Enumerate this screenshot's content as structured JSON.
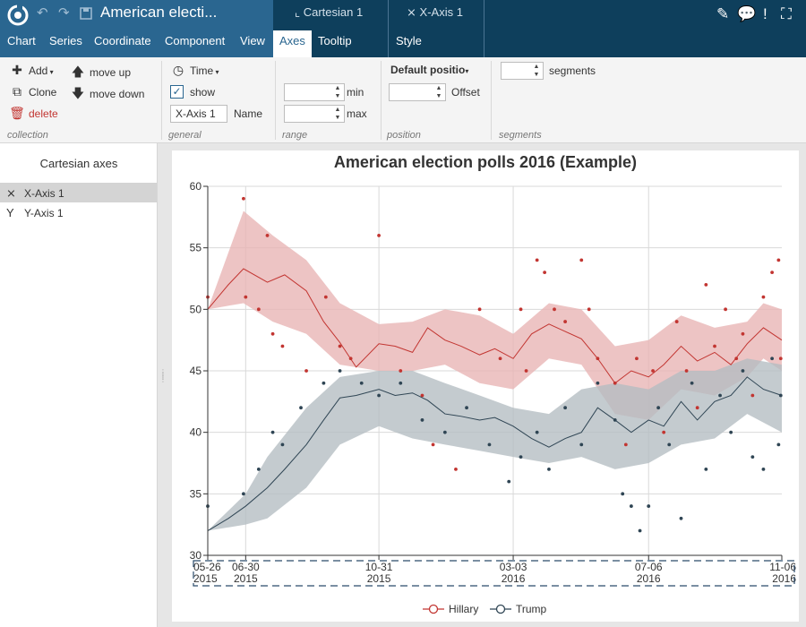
{
  "app": {
    "title": "American electi...",
    "menus": [
      "Chart",
      "Series",
      "Coordinate",
      "Component",
      "View",
      "Axes",
      "Tooltip",
      "Style"
    ],
    "active_menu": "Axes",
    "context_tabs": [
      "Cartesian 1",
      "X-Axis 1"
    ]
  },
  "ribbon": {
    "collection": {
      "add": "Add",
      "clone": "Clone",
      "delete": "delete",
      "move_up": "move up",
      "move_down": "move down",
      "label": "collection"
    },
    "general": {
      "type": "Time",
      "show": "show",
      "name_value": "X-Axis 1",
      "name_label": "Name",
      "label": "general"
    },
    "range": {
      "min_label": "min",
      "max_label": "max",
      "min_value": "",
      "max_value": "",
      "label": "range"
    },
    "position": {
      "dropdown": "Default positio",
      "offset_label": "Offset",
      "offset_value": "",
      "label": "position"
    },
    "segments": {
      "label_text": "segments",
      "value": "",
      "label": "segments"
    }
  },
  "left_panel": {
    "header": "Cartesian axes",
    "items": [
      {
        "label": "X-Axis 1",
        "selected": true
      },
      {
        "label": "Y-Axis 1",
        "selected": false
      }
    ]
  },
  "colors": {
    "hillary": "#c23531",
    "hillary_band": "#e8b3b3",
    "trump": "#2f4554",
    "trump_band": "#b3bdc2",
    "brand": "#0e3f5c"
  },
  "chart_data": {
    "type": "line",
    "title": "American election polls 2016 (Example)",
    "ylim": [
      30,
      60
    ],
    "y_ticks": [
      "30",
      "35",
      "40",
      "45",
      "50",
      "55",
      "60"
    ],
    "x_range": [
      "2015-05-26",
      "2016-11-06"
    ],
    "x_ticks": [
      {
        "date": "2015-05-26",
        "label": [
          "05-26",
          "2015"
        ]
      },
      {
        "date": "2015-06-30",
        "label": [
          "06-30",
          "2015"
        ]
      },
      {
        "date": "2015-10-31",
        "label": [
          "10-31",
          "2015"
        ]
      },
      {
        "date": "2016-03-03",
        "label": [
          "03-03",
          "2016"
        ]
      },
      {
        "date": "2016-07-06",
        "label": [
          "07-06",
          "2016"
        ]
      },
      {
        "date": "2016-11-06",
        "label": [
          "11-06",
          "2016"
        ]
      }
    ],
    "legend": [
      "Hillary",
      "Trump"
    ],
    "series": [
      {
        "name": "Hillary",
        "color": "#c23531",
        "band_color": "#e8b3b3",
        "trend": [
          [
            "2015-05-26",
            50.0
          ],
          [
            "2015-06-14",
            52.0
          ],
          [
            "2015-06-28",
            53.3
          ],
          [
            "2015-07-20",
            52.2
          ],
          [
            "2015-08-05",
            52.8
          ],
          [
            "2015-08-25",
            51.5
          ],
          [
            "2015-09-10",
            49.0
          ],
          [
            "2015-09-25",
            47.3
          ],
          [
            "2015-10-10",
            45.3
          ],
          [
            "2015-10-31",
            47.2
          ],
          [
            "2015-11-15",
            47.0
          ],
          [
            "2015-12-01",
            46.5
          ],
          [
            "2015-12-15",
            48.5
          ],
          [
            "2015-12-31",
            47.5
          ],
          [
            "2016-01-15",
            47.0
          ],
          [
            "2016-02-01",
            46.3
          ],
          [
            "2016-02-15",
            46.8
          ],
          [
            "2016-03-03",
            46.0
          ],
          [
            "2016-03-20",
            48.0
          ],
          [
            "2016-04-05",
            48.8
          ],
          [
            "2016-04-20",
            48.2
          ],
          [
            "2016-05-05",
            47.6
          ],
          [
            "2016-05-20",
            46.0
          ],
          [
            "2016-06-05",
            44.0
          ],
          [
            "2016-06-20",
            45.0
          ],
          [
            "2016-07-06",
            44.5
          ],
          [
            "2016-07-20",
            45.5
          ],
          [
            "2016-08-05",
            47.0
          ],
          [
            "2016-08-20",
            45.8
          ],
          [
            "2016-09-05",
            46.5
          ],
          [
            "2016-09-20",
            45.5
          ],
          [
            "2016-10-05",
            47.2
          ],
          [
            "2016-10-20",
            48.5
          ],
          [
            "2016-11-06",
            47.5
          ]
        ],
        "band_upper": [
          [
            "2015-05-26",
            50.0
          ],
          [
            "2015-06-28",
            58.0
          ],
          [
            "2015-07-25",
            56.0
          ],
          [
            "2015-08-25",
            54.0
          ],
          [
            "2015-09-25",
            50.5
          ],
          [
            "2015-10-31",
            48.8
          ],
          [
            "2015-12-01",
            49.0
          ],
          [
            "2015-12-31",
            50.0
          ],
          [
            "2016-02-01",
            49.5
          ],
          [
            "2016-03-03",
            48.0
          ],
          [
            "2016-04-05",
            50.5
          ],
          [
            "2016-05-05",
            50.0
          ],
          [
            "2016-06-05",
            47.0
          ],
          [
            "2016-07-06",
            47.5
          ],
          [
            "2016-08-05",
            49.5
          ],
          [
            "2016-09-05",
            48.5
          ],
          [
            "2016-10-05",
            49.0
          ],
          [
            "2016-10-20",
            50.5
          ],
          [
            "2016-11-06",
            50.0
          ]
        ],
        "band_lower": [
          [
            "2015-05-26",
            50.0
          ],
          [
            "2015-06-28",
            50.5
          ],
          [
            "2015-07-25",
            49.0
          ],
          [
            "2015-08-25",
            48.0
          ],
          [
            "2015-09-25",
            45.5
          ],
          [
            "2015-10-31",
            45.0
          ],
          [
            "2015-12-01",
            45.0
          ],
          [
            "2015-12-31",
            45.5
          ],
          [
            "2016-02-01",
            44.0
          ],
          [
            "2016-03-03",
            43.5
          ],
          [
            "2016-04-05",
            46.0
          ],
          [
            "2016-05-05",
            45.5
          ],
          [
            "2016-06-05",
            41.5
          ],
          [
            "2016-07-06",
            41.0
          ],
          [
            "2016-08-05",
            43.5
          ],
          [
            "2016-09-05",
            43.0
          ],
          [
            "2016-10-05",
            44.5
          ],
          [
            "2016-10-20",
            46.0
          ],
          [
            "2016-11-06",
            45.0
          ]
        ],
        "points": [
          [
            "2015-05-26",
            51
          ],
          [
            "2015-06-28",
            59
          ],
          [
            "2015-06-30",
            51
          ],
          [
            "2015-07-12",
            50
          ],
          [
            "2015-07-20",
            56
          ],
          [
            "2015-07-25",
            48
          ],
          [
            "2015-08-03",
            47
          ],
          [
            "2015-08-25",
            45
          ],
          [
            "2015-09-12",
            51
          ],
          [
            "2015-09-25",
            47
          ],
          [
            "2015-10-05",
            46
          ],
          [
            "2015-10-31",
            56
          ],
          [
            "2015-11-20",
            45
          ],
          [
            "2015-12-10",
            43
          ],
          [
            "2015-12-20",
            39
          ],
          [
            "2016-01-10",
            37
          ],
          [
            "2016-02-01",
            50
          ],
          [
            "2016-02-20",
            46
          ],
          [
            "2016-03-10",
            50
          ],
          [
            "2016-03-15",
            45
          ],
          [
            "2016-03-25",
            54
          ],
          [
            "2016-04-01",
            53
          ],
          [
            "2016-04-10",
            50
          ],
          [
            "2016-04-20",
            49
          ],
          [
            "2016-05-05",
            54
          ],
          [
            "2016-05-12",
            50
          ],
          [
            "2016-05-20",
            46
          ],
          [
            "2016-06-05",
            44
          ],
          [
            "2016-06-15",
            39
          ],
          [
            "2016-06-25",
            46
          ],
          [
            "2016-07-10",
            45
          ],
          [
            "2016-07-20",
            40
          ],
          [
            "2016-08-01",
            49
          ],
          [
            "2016-08-10",
            45
          ],
          [
            "2016-08-20",
            42
          ],
          [
            "2016-08-28",
            52
          ],
          [
            "2016-09-05",
            47
          ],
          [
            "2016-09-15",
            50
          ],
          [
            "2016-09-25",
            46
          ],
          [
            "2016-10-01",
            48
          ],
          [
            "2016-10-10",
            43
          ],
          [
            "2016-10-20",
            51
          ],
          [
            "2016-10-28",
            53
          ],
          [
            "2016-11-03",
            54
          ],
          [
            "2016-11-05",
            46
          ]
        ]
      },
      {
        "name": "Trump",
        "color": "#2f4554",
        "band_color": "#b3bdc2",
        "trend": [
          [
            "2015-05-26",
            32.0
          ],
          [
            "2015-06-14",
            33.0
          ],
          [
            "2015-06-30",
            34.0
          ],
          [
            "2015-07-20",
            35.5
          ],
          [
            "2015-08-05",
            37.0
          ],
          [
            "2015-08-25",
            39.0
          ],
          [
            "2015-09-10",
            41.0
          ],
          [
            "2015-09-25",
            42.8
          ],
          [
            "2015-10-10",
            43.0
          ],
          [
            "2015-10-31",
            43.5
          ],
          [
            "2015-11-15",
            43.0
          ],
          [
            "2015-12-01",
            43.2
          ],
          [
            "2015-12-15",
            42.6
          ],
          [
            "2015-12-31",
            41.5
          ],
          [
            "2016-01-15",
            41.3
          ],
          [
            "2016-02-01",
            41.0
          ],
          [
            "2016-02-15",
            41.2
          ],
          [
            "2016-03-03",
            40.5
          ],
          [
            "2016-03-20",
            39.5
          ],
          [
            "2016-04-05",
            38.8
          ],
          [
            "2016-04-20",
            39.5
          ],
          [
            "2016-05-05",
            40.0
          ],
          [
            "2016-05-20",
            42.0
          ],
          [
            "2016-06-05",
            41.0
          ],
          [
            "2016-06-20",
            40.0
          ],
          [
            "2016-07-06",
            41.0
          ],
          [
            "2016-07-20",
            40.5
          ],
          [
            "2016-08-05",
            42.5
          ],
          [
            "2016-08-20",
            41.0
          ],
          [
            "2016-09-05",
            42.5
          ],
          [
            "2016-09-20",
            43.0
          ],
          [
            "2016-10-05",
            44.5
          ],
          [
            "2016-10-20",
            43.5
          ],
          [
            "2016-11-06",
            43.0
          ]
        ],
        "band_upper": [
          [
            "2015-05-26",
            32.0
          ],
          [
            "2015-06-30",
            35.0
          ],
          [
            "2015-07-20",
            38.0
          ],
          [
            "2015-08-25",
            42.0
          ],
          [
            "2015-09-25",
            44.5
          ],
          [
            "2015-10-31",
            45.0
          ],
          [
            "2015-12-01",
            45.0
          ],
          [
            "2015-12-31",
            44.0
          ],
          [
            "2016-02-01",
            43.0
          ],
          [
            "2016-03-03",
            42.0
          ],
          [
            "2016-04-05",
            41.5
          ],
          [
            "2016-05-05",
            43.5
          ],
          [
            "2016-06-05",
            44.0
          ],
          [
            "2016-07-06",
            43.5
          ],
          [
            "2016-08-05",
            45.0
          ],
          [
            "2016-09-05",
            45.0
          ],
          [
            "2016-10-05",
            46.0
          ],
          [
            "2016-11-06",
            45.5
          ]
        ],
        "band_lower": [
          [
            "2015-05-26",
            32.0
          ],
          [
            "2015-06-30",
            32.5
          ],
          [
            "2015-07-20",
            33.0
          ],
          [
            "2015-08-25",
            35.5
          ],
          [
            "2015-09-25",
            39.0
          ],
          [
            "2015-10-31",
            40.5
          ],
          [
            "2015-12-01",
            39.5
          ],
          [
            "2015-12-31",
            39.0
          ],
          [
            "2016-02-01",
            38.5
          ],
          [
            "2016-03-03",
            38.0
          ],
          [
            "2016-04-05",
            37.5
          ],
          [
            "2016-05-05",
            38.0
          ],
          [
            "2016-06-05",
            37.0
          ],
          [
            "2016-07-06",
            37.5
          ],
          [
            "2016-08-05",
            39.0
          ],
          [
            "2016-09-05",
            39.5
          ],
          [
            "2016-10-05",
            41.5
          ],
          [
            "2016-11-06",
            40.0
          ]
        ],
        "points": [
          [
            "2015-05-26",
            34
          ],
          [
            "2015-06-28",
            35
          ],
          [
            "2015-07-12",
            37
          ],
          [
            "2015-07-25",
            40
          ],
          [
            "2015-08-03",
            39
          ],
          [
            "2015-08-20",
            42
          ],
          [
            "2015-09-10",
            44
          ],
          [
            "2015-09-25",
            45
          ],
          [
            "2015-10-15",
            44
          ],
          [
            "2015-10-31",
            43
          ],
          [
            "2015-11-20",
            44
          ],
          [
            "2015-12-10",
            41
          ],
          [
            "2015-12-31",
            40
          ],
          [
            "2016-01-20",
            42
          ],
          [
            "2016-02-10",
            39
          ],
          [
            "2016-02-28",
            36
          ],
          [
            "2016-03-10",
            38
          ],
          [
            "2016-03-25",
            40
          ],
          [
            "2016-04-05",
            37
          ],
          [
            "2016-04-20",
            42
          ],
          [
            "2016-05-05",
            39
          ],
          [
            "2016-05-20",
            44
          ],
          [
            "2016-06-05",
            41
          ],
          [
            "2016-06-12",
            35
          ],
          [
            "2016-06-20",
            34
          ],
          [
            "2016-06-28",
            32
          ],
          [
            "2016-07-06",
            34
          ],
          [
            "2016-07-15",
            42
          ],
          [
            "2016-07-25",
            39
          ],
          [
            "2016-08-05",
            33
          ],
          [
            "2016-08-15",
            44
          ],
          [
            "2016-08-28",
            37
          ],
          [
            "2016-09-10",
            43
          ],
          [
            "2016-09-20",
            40
          ],
          [
            "2016-10-01",
            45
          ],
          [
            "2016-10-10",
            38
          ],
          [
            "2016-10-20",
            37
          ],
          [
            "2016-10-28",
            46
          ],
          [
            "2016-11-03",
            39
          ],
          [
            "2016-11-05",
            43
          ]
        ]
      }
    ]
  }
}
